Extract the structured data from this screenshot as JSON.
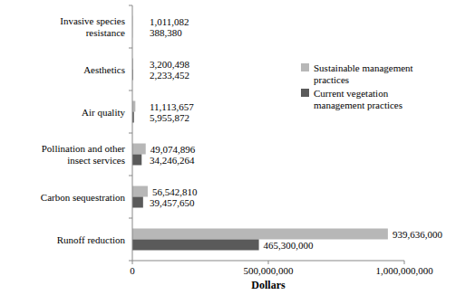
{
  "chart_data": {
    "type": "bar",
    "orientation": "horizontal",
    "categories": [
      "Invasive species resistance",
      "Aesthetics",
      "Air quality",
      "Pollination and other insect services",
      "Carbon sequestration",
      "Runoff reduction"
    ],
    "series": [
      {
        "name": "Sustainable management practices",
        "color": "#b7b7b7",
        "values": [
          1011082,
          3200498,
          11113657,
          49074896,
          56542810,
          939636000
        ],
        "value_labels": [
          "1,011,082",
          "3,200,498",
          "11,113,657",
          "49,074,896",
          "56,542,810",
          "939,636,000"
        ]
      },
      {
        "name": "Current vegetation management practices",
        "color": "#5a5a5a",
        "values": [
          388380,
          2233452,
          5955872,
          34246264,
          39457650,
          465300000
        ],
        "value_labels": [
          "388,380",
          "2,233,452",
          "5,955,872",
          "34,246,264",
          "39,457,650",
          "465,300,000"
        ]
      }
    ],
    "x_label": "Dollars",
    "xlim": [
      0,
      1000000000
    ],
    "xticks": [
      0,
      {
        "value": 500000000,
        "label": "500,000,000"
      },
      {
        "value": 1000000000,
        "label": "1,000,000,000"
      }
    ],
    "data_labels": true,
    "legend": "right",
    "grid": false
  }
}
